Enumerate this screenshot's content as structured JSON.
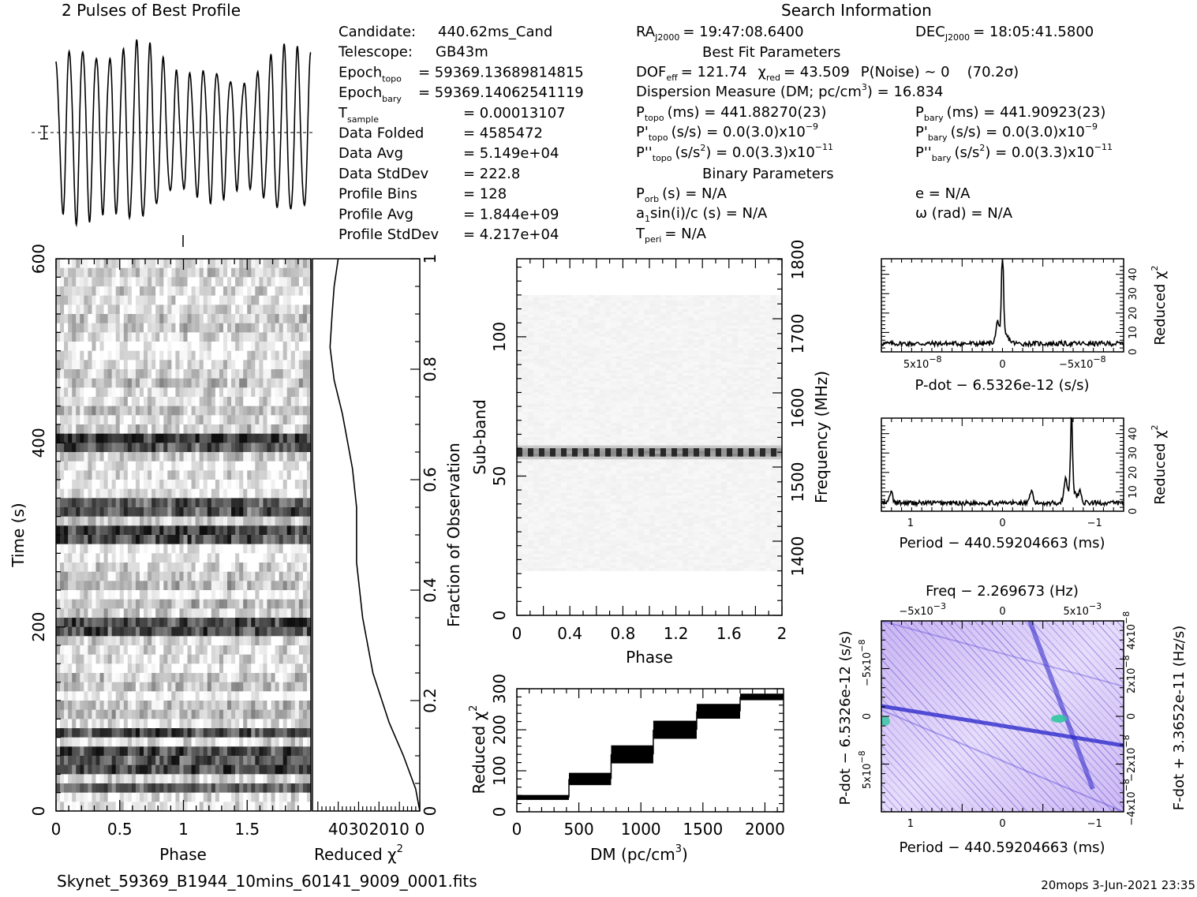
{
  "titles": {
    "profile": "2 Pulses of Best Profile",
    "search": "Search Information",
    "best_fit": "Best Fit Parameters",
    "binary": "Binary Parameters"
  },
  "info_left": [
    {
      "label": "Candidate:",
      "value": "440.62ms_Cand"
    },
    {
      "label": "Telescope:",
      "value": "GB43m"
    },
    {
      "label": "Epoch",
      "sub": "topo",
      "value": "= 59369.13689814815"
    },
    {
      "label": "Epoch",
      "sub": "bary",
      "value": "= 59369.14062541119"
    },
    {
      "label": "T",
      "sub": "sample",
      "value": "=    0.00013107"
    },
    {
      "label": "Data Folded",
      "value": "=    4585472"
    },
    {
      "label": "Data Avg",
      "value": "=    5.149e+04"
    },
    {
      "label": "Data StdDev",
      "value": "=    222.8"
    },
    {
      "label": "Profile Bins",
      "value": "=    128"
    },
    {
      "label": "Profile Avg",
      "value": "=    1.844e+09"
    },
    {
      "label": "Profile StdDev",
      "value": "=    4.217e+04"
    }
  ],
  "info_mid": {
    "ra": {
      "label": "RA",
      "sub": "J2000",
      "value": "= 19:47:08.6400"
    },
    "dec": {
      "label": "DEC",
      "sub": "J2000",
      "value": "= 18:05:41.5800"
    },
    "dof": "DOF",
    "dof_sub": "eff",
    "dof_value": "= 121.74",
    "chi": "χ",
    "chi_sub": "red",
    "chi_value": "= 43.509",
    "pnoise": "P(Noise) ~ 0",
    "sigma": "(70.2σ)",
    "dm_line": "Dispersion Measure (DM; pc/cm",
    "dm_value": ") = 16.834",
    "ptopo": "P",
    "ptopo_sub": "topo",
    "ptopo_value": "(ms) =  441.88270(23)",
    "pbary": "P",
    "pbary_sub": "bary",
    "pbary_value": "(ms) =  441.90923(23)",
    "pdtopo_value": "(s/s) = 0.0(3.0)x10",
    "pdtopo_exp": "−9",
    "pdbary_value": "(s/s) = 0.0(3.0)x10",
    "pdbary_exp": "−9",
    "pddtopo_value": "(s/s",
    "pddtopo_rest": ") = 0.0(3.3)x10",
    "pddtopo_exp": "−11",
    "pddbary_value": "(s/s",
    "pddbary_rest": ") = 0.0(3.3)x10",
    "pddbary_exp": "−11",
    "porb": "P",
    "porb_sub": "orb",
    "porb_value": "(s) = N/A",
    "e_value": "e = N/A",
    "asini": "a",
    "asini_sub": "1",
    "asini_value": "sin(i)/c (s) = N/A",
    "omega_value": "ω (rad) = N/A",
    "tperi": "T",
    "tperi_sub": "peri",
    "tperi_value": "= N/A"
  },
  "footer": {
    "filename": "Skynet_59369_B1944_10mins_60141_9009_0001.fits",
    "stamp": "20mops  3-Jun-2021 23:35"
  },
  "chart_data": [
    {
      "type": "line",
      "name": "pulse-profile",
      "title": "2 Pulses of Best Profile",
      "x": [
        0,
        2
      ],
      "cycles_per_window": 19,
      "note_shape": "near-sinusoidal oscillation"
    },
    {
      "type": "heatmap",
      "name": "time-vs-phase",
      "xlabel": "Phase",
      "ylabel": "Time (s)",
      "xlim": [
        0,
        2
      ],
      "ylim": [
        0,
        600
      ],
      "xticks": [
        "0",
        "0.5",
        "1",
        "1.5"
      ],
      "yticks": [
        "0",
        "200",
        "400",
        "600"
      ],
      "dark_rows_time_s": [
        25,
        45,
        60,
        85,
        200,
        300,
        330,
        395,
        405
      ],
      "colormap": "grayscale"
    },
    {
      "type": "line",
      "name": "time-reduced-chi2",
      "xlabel": "Reduced χ",
      "xticks": [
        "40",
        "30",
        "20",
        "10",
        "0"
      ],
      "right_axis_label": "Fraction of Observation",
      "right_ticks": [
        "0",
        "0.2",
        "0.4",
        "0.6",
        "0.8",
        "1"
      ],
      "fraction": [
        0,
        0.04,
        0.1,
        0.16,
        0.25,
        0.35,
        0.45,
        0.55,
        0.62,
        0.68,
        0.72,
        0.78,
        0.84,
        0.9,
        0.95,
        1.0
      ],
      "chi2": [
        0,
        2,
        8,
        15,
        23,
        28,
        31,
        31,
        33,
        36,
        38,
        42,
        44,
        43,
        42,
        40
      ],
      "xlim": [
        0,
        50
      ]
    },
    {
      "type": "heatmap",
      "name": "subband-vs-phase",
      "xlabel": "Phase",
      "ylabel": "Sub-band",
      "right_axis_label": "Frequency (MHz)",
      "xlim": [
        0,
        2
      ],
      "ylim": [
        0,
        128
      ],
      "xticks": [
        "0",
        "0.4",
        "0.8",
        "1.2",
        "1.6",
        "2"
      ],
      "yticks": [
        "0",
        "50",
        "100"
      ],
      "right_ticks": [
        "1400",
        "1500",
        "1600",
        "1700",
        "1800"
      ],
      "bright_subband": 58
    },
    {
      "type": "line",
      "name": "dm-reduced-chi2",
      "xlabel": "DM (pc/cm",
      "ylabel": "Reduced χ",
      "xlim": [
        0,
        2150
      ],
      "ylim": [
        0,
        300
      ],
      "xticks": [
        "0",
        "500",
        "1000",
        "1500",
        "2000"
      ],
      "yticks": [
        "0",
        "100",
        "200",
        "300"
      ],
      "steps": [
        {
          "x0": 0,
          "x1": 420,
          "y": 35,
          "spread": 6
        },
        {
          "x0": 420,
          "x1": 760,
          "y": 80,
          "spread": 15
        },
        {
          "x0": 760,
          "x1": 1100,
          "y": 140,
          "spread": 22
        },
        {
          "x0": 1100,
          "x1": 1450,
          "y": 200,
          "spread": 22
        },
        {
          "x0": 1450,
          "x1": 1800,
          "y": 245,
          "spread": 18
        },
        {
          "x0": 1800,
          "x1": 2150,
          "y": 280,
          "spread": 8
        }
      ]
    },
    {
      "type": "line",
      "name": "pdot-reduced-chi2",
      "xlabel": "P-dot − 6.5326e-12 (s/s)",
      "ylabel": "Reduced χ",
      "xticks": [
        "5x10",
        "0",
        "−5x10"
      ],
      "xtick_exp": "−8",
      "yticks": [
        "0",
        "10",
        "20",
        "30",
        "40"
      ],
      "peak_x": 0,
      "peak_y": 45
    },
    {
      "type": "line",
      "name": "period-reduced-chi2",
      "xlabel": "Period − 440.59204663 (ms)",
      "ylabel": "Reduced χ",
      "xticks": [
        "1",
        "0",
        "−1"
      ],
      "yticks": [
        "0",
        "10",
        "20",
        "30",
        "40"
      ],
      "peak_x": -0.55,
      "peak_y": 44
    },
    {
      "type": "heatmap",
      "name": "pdot-vs-period",
      "title": "Freq − 2.269673 (Hz)",
      "xlabel": "Period − 440.59204663 (ms)",
      "ylabel": "P-dot − 6.5326e-12 (s/s)",
      "right_axis_label": "F-dot + 3.3652e-11 (Hz/s)",
      "xticks": [
        "1",
        "0",
        "−1"
      ],
      "top_ticks": [
        "−5x10",
        "0",
        "5x10"
      ],
      "top_exp": "−3",
      "left_ticks": [
        "−5x10",
        "0",
        "5x10"
      ],
      "left_exp": "−8",
      "right_ticks": [
        "−4x10",
        "−2x10",
        "0",
        "2x10",
        "4x10"
      ],
      "right_exp": "−8",
      "colormap": "purple-blue"
    }
  ]
}
